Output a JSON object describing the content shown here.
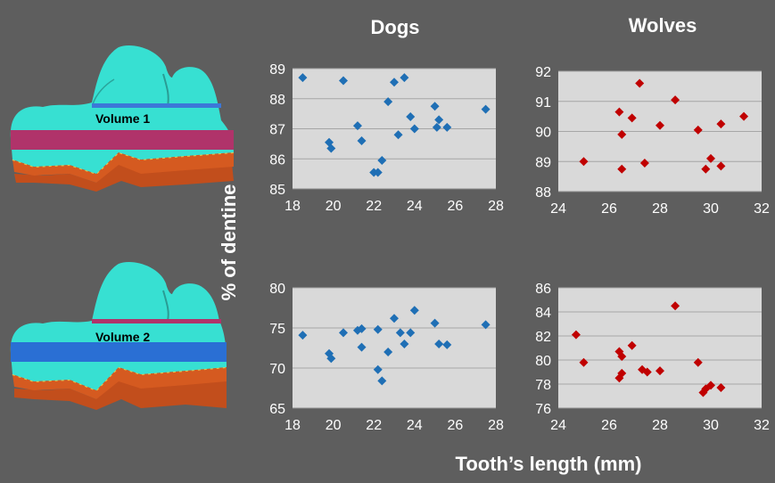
{
  "column_titles": {
    "left": "Dogs",
    "right": "Wolves"
  },
  "axis_titles": {
    "y": "% of dentine",
    "x": "Tooth’s length (mm)"
  },
  "volume_labels": {
    "top": "Volume 1",
    "bottom": "Volume 2"
  },
  "colors": {
    "background": "#5e5e5e",
    "plot_area": "#d9d9d9",
    "gridline": "#a6a6a6",
    "dogs_marker": "#1f6fb5",
    "wolves_marker": "#c00000",
    "tick_text": "#ffffff",
    "enamel": "#37e0d2",
    "band_volume1": "#b0336a",
    "band_volume2": "#2a6fd4",
    "root": "#d55a20"
  },
  "icons": [
    "tooth-model-volume-1",
    "tooth-model-volume-2"
  ],
  "chart_data": [
    {
      "type": "scatter",
      "xlim": [
        18,
        28
      ],
      "xticks": [
        18,
        20,
        22,
        24,
        26,
        28
      ],
      "ylim": [
        85,
        89
      ],
      "yticks": [
        85,
        86,
        87,
        88,
        89
      ],
      "grid": "horizontal",
      "points": [
        {
          "x": 18.5,
          "y": 88.7
        },
        {
          "x": 20.5,
          "y": 88.6
        },
        {
          "x": 23.0,
          "y": 88.55
        },
        {
          "x": 23.5,
          "y": 88.7
        },
        {
          "x": 22.7,
          "y": 87.9
        },
        {
          "x": 25.0,
          "y": 87.75
        },
        {
          "x": 27.5,
          "y": 87.65
        },
        {
          "x": 23.8,
          "y": 87.4
        },
        {
          "x": 25.2,
          "y": 87.3
        },
        {
          "x": 21.2,
          "y": 87.1
        },
        {
          "x": 25.1,
          "y": 87.05
        },
        {
          "x": 25.6,
          "y": 87.05
        },
        {
          "x": 24.0,
          "y": 87.0
        },
        {
          "x": 23.2,
          "y": 86.8
        },
        {
          "x": 19.8,
          "y": 86.55
        },
        {
          "x": 21.4,
          "y": 86.6
        },
        {
          "x": 19.9,
          "y": 86.35
        },
        {
          "x": 22.4,
          "y": 85.95
        },
        {
          "x": 22.0,
          "y": 85.55
        },
        {
          "x": 22.2,
          "y": 85.55
        }
      ]
    },
    {
      "type": "scatter",
      "xlim": [
        24,
        32
      ],
      "xticks": [
        24,
        26,
        28,
        30,
        32
      ],
      "ylim": [
        88,
        92
      ],
      "yticks": [
        88,
        89,
        90,
        91,
        92
      ],
      "grid": "horizontal",
      "points": [
        {
          "x": 27.2,
          "y": 91.6
        },
        {
          "x": 28.6,
          "y": 91.05
        },
        {
          "x": 26.4,
          "y": 90.65
        },
        {
          "x": 31.3,
          "y": 90.5
        },
        {
          "x": 26.9,
          "y": 90.45
        },
        {
          "x": 30.4,
          "y": 90.25
        },
        {
          "x": 28.0,
          "y": 90.2
        },
        {
          "x": 29.5,
          "y": 90.05
        },
        {
          "x": 26.5,
          "y": 89.9
        },
        {
          "x": 30.0,
          "y": 89.1
        },
        {
          "x": 25.0,
          "y": 89.0
        },
        {
          "x": 27.4,
          "y": 88.95
        },
        {
          "x": 30.4,
          "y": 88.85
        },
        {
          "x": 26.5,
          "y": 88.75
        },
        {
          "x": 29.8,
          "y": 88.75
        }
      ]
    },
    {
      "type": "scatter",
      "xlim": [
        18,
        28
      ],
      "xticks": [
        18,
        20,
        22,
        24,
        26,
        28
      ],
      "ylim": [
        65,
        80
      ],
      "yticks": [
        65,
        70,
        75,
        80
      ],
      "grid": "horizontal",
      "points": [
        {
          "x": 24.0,
          "y": 77.2
        },
        {
          "x": 23.0,
          "y": 76.2
        },
        {
          "x": 25.0,
          "y": 75.6
        },
        {
          "x": 27.5,
          "y": 75.4
        },
        {
          "x": 21.2,
          "y": 74.7
        },
        {
          "x": 21.4,
          "y": 74.9
        },
        {
          "x": 22.2,
          "y": 74.8
        },
        {
          "x": 20.5,
          "y": 74.4
        },
        {
          "x": 23.3,
          "y": 74.4
        },
        {
          "x": 23.8,
          "y": 74.4
        },
        {
          "x": 18.5,
          "y": 74.1
        },
        {
          "x": 23.5,
          "y": 73.0
        },
        {
          "x": 25.2,
          "y": 73.0
        },
        {
          "x": 25.6,
          "y": 72.9
        },
        {
          "x": 21.4,
          "y": 72.6
        },
        {
          "x": 22.7,
          "y": 72.0
        },
        {
          "x": 19.8,
          "y": 71.8
        },
        {
          "x": 19.9,
          "y": 71.2
        },
        {
          "x": 22.2,
          "y": 69.8
        },
        {
          "x": 22.4,
          "y": 68.4
        }
      ]
    },
    {
      "type": "scatter",
      "xlim": [
        24,
        32
      ],
      "xticks": [
        24,
        26,
        28,
        30,
        32
      ],
      "ylim": [
        76,
        86
      ],
      "yticks": [
        76,
        78,
        80,
        82,
        84,
        86
      ],
      "grid": "horizontal",
      "points": [
        {
          "x": 28.6,
          "y": 84.5
        },
        {
          "x": 24.7,
          "y": 82.1
        },
        {
          "x": 26.9,
          "y": 81.2
        },
        {
          "x": 26.4,
          "y": 80.7
        },
        {
          "x": 26.5,
          "y": 80.3
        },
        {
          "x": 25.0,
          "y": 79.8
        },
        {
          "x": 29.5,
          "y": 79.8
        },
        {
          "x": 27.3,
          "y": 79.2
        },
        {
          "x": 28.0,
          "y": 79.1
        },
        {
          "x": 27.5,
          "y": 79.0
        },
        {
          "x": 26.5,
          "y": 78.9
        },
        {
          "x": 26.4,
          "y": 78.5
        },
        {
          "x": 30.0,
          "y": 77.9
        },
        {
          "x": 29.8,
          "y": 77.6
        },
        {
          "x": 30.4,
          "y": 77.7
        },
        {
          "x": 29.7,
          "y": 77.3
        }
      ]
    }
  ]
}
